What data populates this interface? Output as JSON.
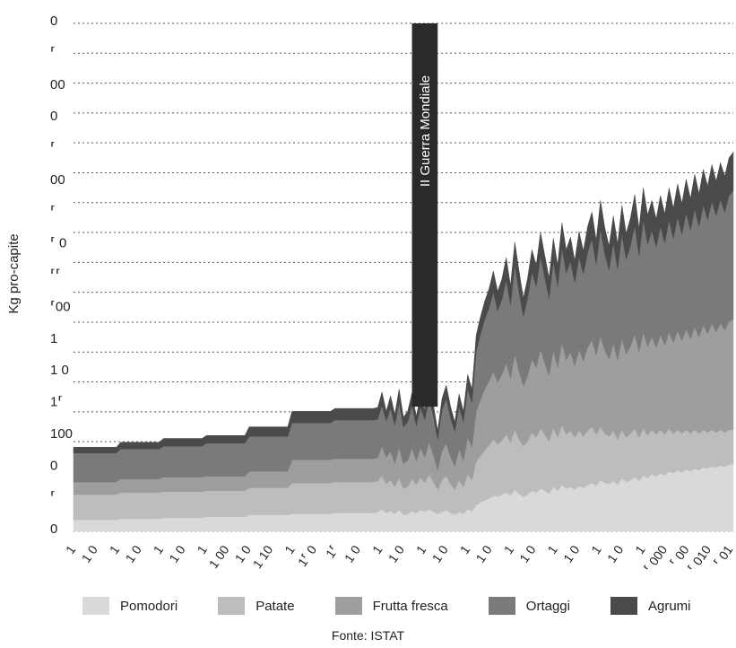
{
  "chart_data": {
    "type": "area",
    "stacked": true,
    "ylabel": "Kg pro-capite",
    "y_tick_labels": [
      "0",
      "⸢",
      "00",
      "0",
      "⸢",
      "00",
      "⸢",
      "⸢ 0",
      "⸢⸢",
      "⸢00",
      "1",
      "1 0",
      "1⸢",
      "100",
      "0",
      "⸢",
      "0"
    ],
    "x_tick_labels": [
      "1",
      "1 0",
      "1",
      "1 0",
      "1",
      "1 0",
      "1",
      "1 00",
      "1 0",
      "1 10",
      "1",
      "1⸢ 0",
      "1⸢",
      "1 0",
      "1",
      "1 0",
      "1",
      "1 0",
      "1",
      "1 0",
      "1",
      "1 0",
      "1",
      "1 0",
      "1",
      "1 0",
      "1",
      "⸢ 000",
      "⸢ 00",
      "⸢ 010",
      "⸢ 01"
    ],
    "annotation": "II Guerra Mondiale",
    "source": "Fonte: ISTAT",
    "grid": "horizontal dotted",
    "legend_position": "bottom",
    "x": [
      1861,
      1871,
      1872,
      1881,
      1882,
      1891,
      1892,
      1901,
      1902,
      1911,
      1912,
      1921,
      1922,
      1931,
      1932,
      1933,
      1934,
      1935,
      1936,
      1937,
      1938,
      1939,
      1940,
      1941,
      1942,
      1943,
      1944,
      1945,
      1946,
      1947,
      1948,
      1949,
      1950,
      1951,
      1952,
      1953,
      1954,
      1955,
      1956,
      1957,
      1958,
      1959,
      1960,
      1961,
      1962,
      1963,
      1964,
      1965,
      1966,
      1967,
      1968,
      1969,
      1970,
      1971,
      1972,
      1973,
      1974,
      1975,
      1976,
      1977,
      1978,
      1979,
      1980,
      1981,
      1982,
      1983,
      1984,
      1985,
      1986,
      1987,
      1988,
      1989,
      1990,
      1991,
      1992,
      1993,
      1994,
      1995,
      1996,
      1997,
      1998,
      1999,
      2000,
      2001,
      2002,
      2003,
      2004,
      2005,
      2006,
      2007,
      2008,
      2009,
      2010,
      2011,
      2012,
      2013,
      2014,
      2015
    ],
    "series": [
      {
        "name": "Pomodori",
        "color": "#d9d9d9",
        "values": [
          12,
          12,
          13,
          13,
          14,
          14,
          15,
          15,
          17,
          17,
          18,
          18,
          19,
          19,
          20,
          23,
          19,
          21,
          18,
          22,
          17,
          18,
          21,
          19,
          22,
          20,
          23,
          20,
          18,
          20,
          22,
          19,
          17,
          20,
          18,
          23,
          21,
          27,
          30,
          32,
          34,
          37,
          36,
          38,
          40,
          37,
          43,
          39,
          36,
          38,
          42,
          40,
          44,
          42,
          39,
          46,
          42,
          48,
          44,
          46,
          43,
          47,
          45,
          48,
          50,
          47,
          53,
          50,
          49,
          52,
          48,
          55,
          51,
          53,
          56,
          52,
          58,
          55,
          59,
          57,
          60,
          58,
          62,
          60,
          63,
          61,
          64,
          62,
          65,
          63,
          66,
          65,
          67,
          66,
          68,
          67,
          69,
          70
        ]
      },
      {
        "name": "Patate",
        "color": "#bdbdbd",
        "values": [
          26,
          26,
          27,
          27,
          27,
          27,
          27,
          27,
          28,
          28,
          32,
          32,
          32,
          32,
          32,
          35,
          30,
          32,
          28,
          33,
          27,
          28,
          33,
          29,
          34,
          30,
          36,
          31,
          25,
          33,
          35,
          30,
          26,
          33,
          28,
          36,
          32,
          45,
          48,
          52,
          55,
          58,
          54,
          56,
          60,
          55,
          62,
          56,
          52,
          55,
          60,
          57,
          62,
          58,
          54,
          61,
          55,
          62,
          56,
          58,
          54,
          57,
          53,
          56,
          58,
          53,
          55,
          51,
          49,
          52,
          47,
          50,
          46,
          48,
          50,
          45,
          48,
          44,
          46,
          43,
          45,
          42,
          44,
          41,
          42,
          40,
          41,
          39,
          40,
          38,
          39,
          37,
          38,
          36,
          37,
          35,
          36,
          35
        ]
      },
      {
        "name": "Frutta fresca",
        "color": "#9e9e9e",
        "values": [
          13,
          13,
          14,
          14,
          15,
          15,
          15,
          15,
          17,
          17,
          24,
          24,
          24,
          24,
          24,
          30,
          27,
          30,
          24,
          32,
          26,
          27,
          32,
          25,
          30,
          27,
          33,
          28,
          20,
          30,
          34,
          28,
          24,
          32,
          27,
          38,
          34,
          52,
          58,
          63,
          66,
          70,
          64,
          68,
          74,
          66,
          78,
          70,
          62,
          68,
          76,
          72,
          82,
          74,
          68,
          80,
          72,
          85,
          77,
          81,
          74,
          84,
          78,
          86,
          90,
          82,
          94,
          86,
          80,
          90,
          82,
          94,
          86,
          90,
          98,
          88,
          100,
          92,
          96,
          90,
          98,
          92,
          100,
          94,
          102,
          96,
          104,
          98,
          106,
          100,
          108,
          102,
          110,
          104,
          110,
          106,
          112,
          114
        ]
      },
      {
        "name": "Ortaggi",
        "color": "#7a7a7a",
        "values": [
          30,
          30,
          31,
          31,
          32,
          32,
          34,
          34,
          36,
          36,
          38,
          38,
          40,
          40,
          40,
          42,
          38,
          44,
          40,
          46,
          38,
          40,
          44,
          36,
          42,
          38,
          46,
          40,
          32,
          42,
          46,
          40,
          36,
          44,
          40,
          50,
          46,
          62,
          68,
          72,
          76,
          82,
          74,
          78,
          86,
          76,
          92,
          82,
          72,
          80,
          90,
          84,
          96,
          88,
          80,
          92,
          84,
          98,
          90,
          94,
          86,
          96,
          90,
          98,
          104,
          94,
          110,
          100,
          92,
          104,
          94,
          108,
          98,
          104,
          112,
          100,
          116,
          106,
          110,
          104,
          112,
          106,
          116,
          108,
          118,
          110,
          120,
          112,
          122,
          114,
          124,
          118,
          126,
          120,
          128,
          122,
          130,
          133
        ]
      },
      {
        "name": "Agrumi",
        "color": "#4a4a4a",
        "values": [
          6,
          6,
          7,
          7,
          8,
          8,
          8,
          8,
          10,
          10,
          12,
          12,
          12,
          12,
          12,
          14,
          10,
          13,
          11,
          14,
          10,
          11,
          13,
          10,
          12,
          11,
          14,
          12,
          9,
          12,
          14,
          12,
          10,
          13,
          11,
          15,
          14,
          17,
          18,
          19,
          20,
          22,
          20,
          21,
          23,
          20,
          24,
          22,
          19,
          21,
          23,
          22,
          25,
          23,
          21,
          24,
          22,
          26,
          24,
          25,
          23,
          26,
          24,
          27,
          28,
          25,
          30,
          27,
          25,
          28,
          26,
          30,
          27,
          29,
          32,
          28,
          33,
          30,
          31,
          29,
          32,
          30,
          33,
          31,
          34,
          32,
          35,
          33,
          36,
          34,
          37,
          35,
          38,
          36,
          38,
          37,
          39,
          40
        ]
      }
    ],
    "ylim": [
      0,
      525
    ],
    "war_band": [
      1940,
      1946
    ]
  }
}
